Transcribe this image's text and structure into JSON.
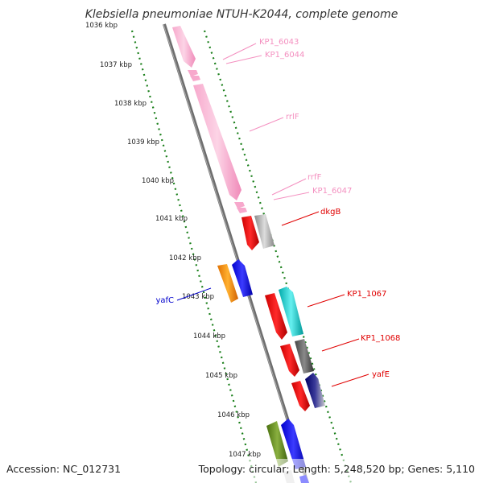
{
  "title": "Klebsiella pneumoniae NTUH-K2044, complete genome",
  "footer": {
    "accession": "Accession: NC_012731",
    "summary": "Topology: circular; Length: 5,248,520 bp; Genes: 5,110"
  },
  "colors": {
    "rrna": "#f7a8cc",
    "red": "#ff0000",
    "gray": "#999999",
    "darkgray": "#555555",
    "cyan": "#00cccc",
    "blue": "#0000ff",
    "navy": "#000080",
    "orange": "#ff8c00",
    "olive": "#5c8a1a",
    "backbone": "#7a7a7a",
    "ticks": "#1a7f1a"
  },
  "kbp_labels": [
    "1036 kbp",
    "1037 kbp",
    "1038 kbp",
    "1039 kbp",
    "1040 kbp",
    "1041 kbp",
    "1042 kbp",
    "1043 kbp",
    "1044 kbp",
    "1045 kbp",
    "1046 kbp",
    "1047 kbp"
  ],
  "gene_labels": [
    {
      "text": "KP1_6043",
      "color": "#f490c0"
    },
    {
      "text": "KP1_6044",
      "color": "#f490c0"
    },
    {
      "text": "rrlF",
      "color": "#f490c0"
    },
    {
      "text": "rrfF",
      "color": "#f490c0"
    },
    {
      "text": "KP1_6047",
      "color": "#f490c0"
    },
    {
      "text": "dkgB",
      "color": "#e00000"
    },
    {
      "text": "yafC",
      "color": "#0000cc"
    },
    {
      "text": "KP1_1067",
      "color": "#e00000"
    },
    {
      "text": "KP1_1068",
      "color": "#e00000"
    },
    {
      "text": "yafE",
      "color": "#e00000"
    }
  ]
}
